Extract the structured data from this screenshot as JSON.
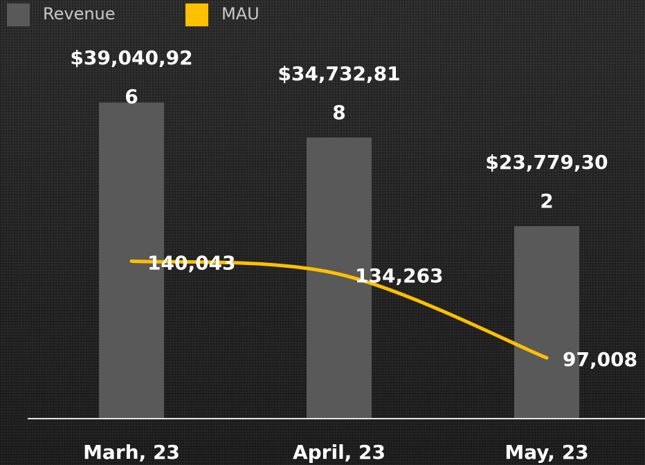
{
  "chart_data": {
    "type": "bar",
    "categories": [
      "Marh, 23",
      "April, 23",
      "May, 23"
    ],
    "series": [
      {
        "name": "Revenue",
        "type": "bar",
        "color": "#595959",
        "values": [
          39040926,
          34732818,
          23779302
        ],
        "value_labels": [
          "$39,040,926",
          "$34,732,818",
          "$23,779,302"
        ]
      },
      {
        "name": "MAU",
        "type": "line",
        "axis": "y2",
        "color": "#ffc000",
        "values": [
          140043,
          134263,
          97008
        ],
        "value_labels": [
          "140,043",
          "134,263",
          "97,008"
        ]
      }
    ],
    "ylim": [
      0,
      50000000
    ],
    "y2lim": [
      70000,
      250000
    ],
    "legend": "top-left"
  }
}
